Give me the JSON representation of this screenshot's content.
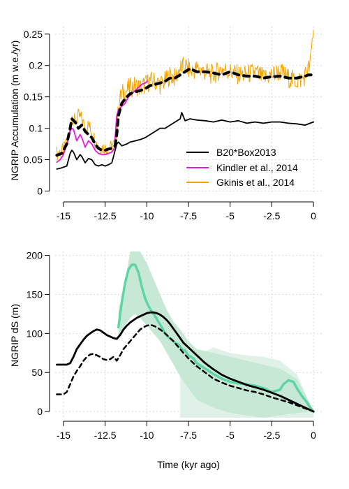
{
  "chart_data": [
    {
      "type": "line",
      "ylabel": "NGRIP Accumulation (m w.e./yr)",
      "xlabel": "",
      "xlim": [
        -15.5,
        0.5
      ],
      "ylim": [
        -0.005,
        0.262
      ],
      "xticks": [
        -15,
        -12.5,
        -10,
        -7.5,
        -5,
        -2.5,
        0
      ],
      "xtick_labels": [
        "-15",
        "-12.5",
        "-10",
        "-7.5",
        "-5",
        "-2.5",
        "0"
      ],
      "yticks": [
        0,
        0.05,
        0.1,
        0.15,
        0.2,
        0.25
      ],
      "ytick_labels": [
        "0",
        "0.05",
        "0.1",
        "0.15",
        "0.2",
        "0.25"
      ],
      "grid": true,
      "legend": "center-right",
      "series": [
        {
          "name": "Gkinis et al., 2014",
          "color": "#f5a500",
          "style": "solid",
          "noisy": true,
          "x": [
            -15.4,
            -15.0,
            -14.7,
            -14.5,
            -14.3,
            -14.1,
            -13.9,
            -13.7,
            -13.5,
            -13.3,
            -13.1,
            -12.9,
            -12.7,
            -12.5,
            -12.3,
            -12.1,
            -11.9,
            -11.75,
            -11.7,
            -11.5,
            -11.2,
            -11.0,
            -10.7,
            -10.4,
            -10.1,
            -9.8,
            -9.5,
            -9.2,
            -8.9,
            -8.6,
            -8.3,
            -8.0,
            -7.7,
            -7.3,
            -7.0,
            -6.5,
            -6.0,
            -5.5,
            -5.0,
            -4.5,
            -4.0,
            -3.5,
            -3.0,
            -2.5,
            -2.0,
            -1.5,
            -1.0,
            -0.6,
            -0.4,
            -0.2,
            0.0
          ],
          "y": [
            0.06,
            0.065,
            0.08,
            0.12,
            0.11,
            0.12,
            0.115,
            0.1,
            0.105,
            0.095,
            0.08,
            0.07,
            0.07,
            0.068,
            0.068,
            0.07,
            0.075,
            0.11,
            0.14,
            0.155,
            0.16,
            0.165,
            0.168,
            0.165,
            0.17,
            0.175,
            0.175,
            0.17,
            0.175,
            0.185,
            0.18,
            0.195,
            0.2,
            0.19,
            0.195,
            0.19,
            0.185,
            0.195,
            0.19,
            0.185,
            0.185,
            0.19,
            0.18,
            0.185,
            0.19,
            0.18,
            0.175,
            0.18,
            0.19,
            0.2,
            0.26
          ]
        },
        {
          "name": "Kindler et al., 2014",
          "color": "#e619e6",
          "style": "solid",
          "x": [
            -15.4,
            -15.2,
            -15.0,
            -14.8,
            -14.6,
            -14.5,
            -14.4,
            -14.2,
            -14.0,
            -13.9,
            -13.7,
            -13.5,
            -13.3,
            -13.1,
            -12.9,
            -12.7,
            -12.5,
            -12.3,
            -12.1,
            -11.95,
            -11.8,
            -11.7,
            -11.5,
            -11.3,
            -11.1,
            -10.9,
            -10.7,
            -10.5,
            -10.3,
            -10.1,
            -9.95
          ],
          "y": [
            0.046,
            0.05,
            0.058,
            0.075,
            0.095,
            0.1,
            0.098,
            0.08,
            0.09,
            0.085,
            0.07,
            0.08,
            0.075,
            0.065,
            0.06,
            0.058,
            0.058,
            0.06,
            0.062,
            0.068,
            0.12,
            0.13,
            0.135,
            0.14,
            0.15,
            0.155,
            0.16,
            0.165,
            0.17,
            0.172,
            0.175
          ]
        },
        {
          "name": "",
          "color": "#000000",
          "style": "dashed",
          "x": [
            -15.4,
            -15.1,
            -14.8,
            -14.6,
            -14.5,
            -14.3,
            -14.1,
            -13.9,
            -13.7,
            -13.5,
            -13.3,
            -13.1,
            -12.9,
            -12.7,
            -12.5,
            -12.3,
            -12.1,
            -11.9,
            -11.8,
            -11.7,
            -11.5,
            -11.2,
            -11.0,
            -10.7,
            -10.4,
            -10.1,
            -9.8,
            -9.5,
            -9.2,
            -8.9,
            -8.6,
            -8.3,
            -8.0,
            -7.7,
            -7.4,
            -7.0,
            -6.5,
            -6.0,
            -5.5,
            -5.0,
            -4.5,
            -4.0,
            -3.5,
            -3.0,
            -2.5,
            -2.0,
            -1.5,
            -1.0,
            -0.5,
            -0.3,
            0.0
          ],
          "y": [
            0.057,
            0.06,
            0.075,
            0.1,
            0.115,
            0.11,
            0.1,
            0.105,
            0.095,
            0.09,
            0.085,
            0.075,
            0.068,
            0.065,
            0.065,
            0.067,
            0.068,
            0.072,
            0.09,
            0.12,
            0.14,
            0.15,
            0.155,
            0.158,
            0.16,
            0.163,
            0.168,
            0.17,
            0.172,
            0.175,
            0.18,
            0.18,
            0.185,
            0.19,
            0.195,
            0.19,
            0.19,
            0.188,
            0.185,
            0.19,
            0.185,
            0.183,
            0.183,
            0.18,
            0.182,
            0.183,
            0.18,
            0.18,
            0.183,
            0.185,
            0.185
          ]
        },
        {
          "name": "B20*Box2013",
          "color": "#000000",
          "style": "solid",
          "x": [
            -15.4,
            -15.1,
            -14.8,
            -14.6,
            -14.5,
            -14.4,
            -14.2,
            -14.0,
            -13.9,
            -13.7,
            -13.5,
            -13.3,
            -13.1,
            -12.9,
            -12.7,
            -12.5,
            -12.3,
            -12.1,
            -11.95,
            -11.8,
            -11.7,
            -11.5,
            -11.2,
            -11.0,
            -10.7,
            -10.4,
            -10.1,
            -9.8,
            -9.5,
            -9.2,
            -8.9,
            -8.6,
            -8.3,
            -8.0,
            -7.9,
            -7.7,
            -7.4,
            -7.0,
            -6.5,
            -6.0,
            -5.5,
            -5.0,
            -4.5,
            -4.0,
            -3.5,
            -3.0,
            -2.5,
            -2.0,
            -1.5,
            -1.0,
            -0.5,
            -0.2,
            0.0
          ],
          "y": [
            0.035,
            0.037,
            0.04,
            0.06,
            0.065,
            0.062,
            0.05,
            0.058,
            0.055,
            0.045,
            0.052,
            0.05,
            0.042,
            0.04,
            0.042,
            0.04,
            0.042,
            0.045,
            0.06,
            0.075,
            0.078,
            0.072,
            0.075,
            0.078,
            0.08,
            0.082,
            0.085,
            0.09,
            0.095,
            0.1,
            0.1,
            0.105,
            0.11,
            0.115,
            0.125,
            0.112,
            0.115,
            0.113,
            0.112,
            0.11,
            0.113,
            0.11,
            0.112,
            0.108,
            0.11,
            0.108,
            0.11,
            0.11,
            0.108,
            0.107,
            0.105,
            0.108,
            0.11
          ]
        }
      ]
    },
    {
      "type": "line",
      "ylabel": "NGRIP dS (m)",
      "xlabel": "Time (kyr ago)",
      "xlim": [
        -15.5,
        0.5
      ],
      "ylim": [
        -8,
        205
      ],
      "xticks": [
        -15,
        -12.5,
        -10,
        -7.5,
        -5,
        -2.5,
        0
      ],
      "xtick_labels": [
        "-15",
        "-12.5",
        "-10",
        "-7.5",
        "-5",
        "-2.5",
        "0"
      ],
      "yticks": [
        0,
        50,
        100,
        150,
        200
      ],
      "ytick_labels": [
        "0",
        "50",
        "100",
        "150",
        "200"
      ],
      "grid": true,
      "bands": [
        {
          "color": "#e0f2e8",
          "x": [
            -8.0,
            -7.0,
            -6.0,
            -5.0,
            -4.0,
            -3.0,
            -2.0,
            -1.0,
            0.0
          ],
          "upper": [
            80,
            72,
            82,
            75,
            72,
            70,
            65,
            48,
            0
          ],
          "lower": [
            -8,
            -8,
            -8,
            -8,
            -8,
            -8,
            -8,
            -8,
            -8
          ]
        },
        {
          "color": "#c8e8d6",
          "x": [
            -11.7,
            -11.3,
            -11.0,
            -10.7,
            -10.4,
            -10.0,
            -9.6,
            -9.2,
            -8.8,
            -8.4,
            -8.0,
            -7.5,
            -7.0,
            -6.0,
            -5.0,
            -4.0,
            -3.0,
            -2.0,
            -1.0,
            0.0
          ],
          "upper": [
            130,
            165,
            205,
            205,
            205,
            190,
            170,
            150,
            130,
            115,
            105,
            90,
            80,
            75,
            70,
            65,
            60,
            55,
            42,
            2
          ],
          "lower": [
            95,
            110,
            120,
            125,
            120,
            110,
            100,
            90,
            75,
            60,
            45,
            30,
            15,
            5,
            -2,
            -5,
            -8,
            -5,
            -2,
            0
          ]
        }
      ],
      "series": [
        {
          "name": "",
          "color": "#5fd4a6",
          "style": "solid",
          "x": [
            -11.7,
            -11.5,
            -11.3,
            -11.1,
            -10.9,
            -10.7,
            -10.5,
            -10.3,
            -10.1,
            -9.9,
            -9.7,
            -9.5,
            -9.3,
            -9.1,
            -8.9,
            -8.7,
            -8.5,
            -8.3,
            -8.1,
            -7.9,
            -7.7,
            -7.5,
            -7.2,
            -7.0,
            -6.5,
            -6.0,
            -5.5,
            -5.0,
            -4.5,
            -4.0,
            -3.5,
            -3.0,
            -2.5,
            -2.0,
            -1.8,
            -1.5,
            -1.2,
            -1.0,
            -0.7,
            -0.4,
            -0.2,
            0.0
          ],
          "y": [
            108,
            140,
            165,
            182,
            188,
            188,
            178,
            160,
            145,
            135,
            128,
            122,
            115,
            108,
            100,
            95,
            92,
            88,
            86,
            80,
            78,
            72,
            68,
            62,
            55,
            48,
            42,
            38,
            36,
            35,
            33,
            30,
            25,
            28,
            35,
            40,
            38,
            30,
            20,
            12,
            5,
            0
          ]
        },
        {
          "name": "",
          "color": "#000000",
          "style": "dashed",
          "x": [
            -15.4,
            -15.0,
            -14.8,
            -14.6,
            -14.4,
            -14.2,
            -14.0,
            -13.8,
            -13.6,
            -13.4,
            -13.2,
            -13.0,
            -12.8,
            -12.6,
            -12.4,
            -12.2,
            -12.0,
            -11.8,
            -11.6,
            -11.4,
            -11.2,
            -11.0,
            -10.8,
            -10.6,
            -10.4,
            -10.2,
            -10.0,
            -9.8,
            -9.6,
            -9.4,
            -9.2,
            -9.0,
            -8.8,
            -8.6,
            -8.4,
            -8.2,
            -8.0,
            -7.8,
            -7.5,
            -7.0,
            -6.5,
            -6.0,
            -5.5,
            -5.0,
            -4.5,
            -4.0,
            -3.5,
            -3.0,
            -2.5,
            -2.0,
            -1.5,
            -1.0,
            -0.5,
            0.0
          ],
          "y": [
            22,
            22,
            25,
            35,
            45,
            52,
            58,
            65,
            70,
            73,
            74,
            72,
            70,
            67,
            66,
            67,
            70,
            65,
            72,
            80,
            85,
            90,
            95,
            100,
            105,
            108,
            110,
            111,
            110,
            108,
            105,
            102,
            98,
            94,
            90,
            85,
            80,
            75,
            68,
            58,
            50,
            42,
            37,
            33,
            30,
            27,
            25,
            22,
            18,
            15,
            12,
            8,
            4,
            0
          ]
        },
        {
          "name": "",
          "color": "#000000",
          "style": "solid",
          "x": [
            -15.4,
            -15.0,
            -14.8,
            -14.6,
            -14.4,
            -14.2,
            -14.0,
            -13.8,
            -13.6,
            -13.4,
            -13.2,
            -13.0,
            -12.8,
            -12.6,
            -12.4,
            -12.2,
            -12.0,
            -11.8,
            -11.6,
            -11.4,
            -11.2,
            -11.0,
            -10.8,
            -10.6,
            -10.4,
            -10.2,
            -10.0,
            -9.8,
            -9.6,
            -9.4,
            -9.2,
            -9.0,
            -8.8,
            -8.6,
            -8.4,
            -8.2,
            -8.0,
            -7.8,
            -7.5,
            -7.0,
            -6.5,
            -6.0,
            -5.5,
            -5.0,
            -4.5,
            -4.0,
            -3.5,
            -3.0,
            -2.5,
            -2.0,
            -1.5,
            -1.0,
            -0.5,
            0.0
          ],
          "y": [
            60,
            60,
            60,
            62,
            70,
            80,
            86,
            92,
            97,
            100,
            103,
            105,
            104,
            101,
            98,
            96,
            94,
            93,
            98,
            105,
            110,
            114,
            117,
            120,
            122,
            124,
            126,
            127,
            127,
            126,
            124,
            121,
            117,
            112,
            106,
            100,
            94,
            88,
            82,
            72,
            62,
            54,
            47,
            42,
            38,
            34,
            31,
            28,
            24,
            20,
            15,
            10,
            5,
            0
          ]
        }
      ]
    }
  ]
}
